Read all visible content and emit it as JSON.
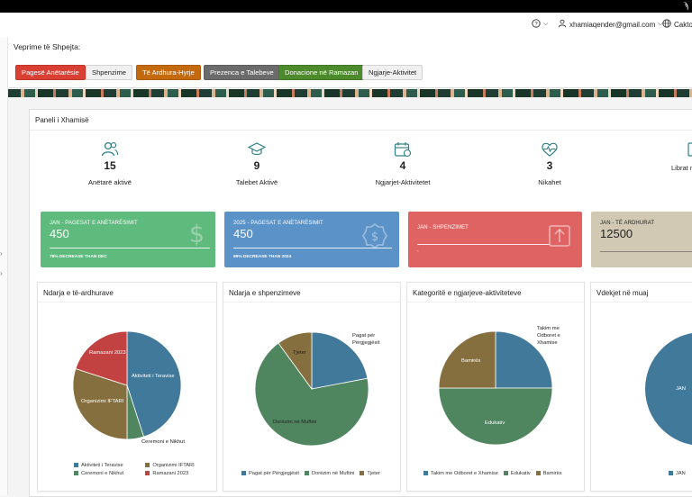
{
  "header": {
    "help_icon": "help-circle-icon",
    "user_email": "xhamiaqender@gmail.com",
    "language_label": "Cakto"
  },
  "quick_actions": {
    "title": "Veprime të Shpejta:",
    "buttons": [
      {
        "label": "Pagesë Anëtarësie",
        "color": "#d93f33"
      },
      {
        "label": "Shpenzime",
        "color": "#f0f0f0"
      },
      {
        "label": "Të Ardhura-Hyrje",
        "color": "#c3690e"
      },
      {
        "label": "Prezenca e Talebeve",
        "color": "#6b6b6b"
      },
      {
        "label": "Donacione në Ramazan",
        "color": "#4c8a2c"
      },
      {
        "label": "Ngjarje-Aktivitet",
        "color": "#f0f0f0"
      }
    ]
  },
  "panel": {
    "title": "Paneli i Xhamisë",
    "stats": [
      {
        "value": "15",
        "label": "Anëtarë aktivë",
        "icon": "users-icon"
      },
      {
        "value": "9",
        "label": "Talebet Aktivë",
        "icon": "graduation-cap-icon"
      },
      {
        "value": "4",
        "label": "Ngjarjet-Aktivitetet",
        "icon": "calendar-icon"
      },
      {
        "value": "3",
        "label": "Nikahet",
        "icon": "heart-pulse-icon"
      },
      {
        "value": "",
        "label": "Librat n",
        "icon": "book-icon"
      }
    ],
    "cards": [
      {
        "title": "JAN - PAGESAT E ANËTARËSIMIT",
        "value": "450",
        "footer": "78% DECREASE THAN DEC",
        "color": "#5fba7d",
        "icon": "dollar-icon"
      },
      {
        "title": "2025 - PAGESAT E ANËTARËSIMIT",
        "value": "450",
        "footer": "99% DECREASE THAN 2024",
        "color": "#5b93c9",
        "icon": "dollar-badge-icon"
      },
      {
        "title": "JAN - SHPENZIMET",
        "value": "",
        "footer": "-",
        "color": "#e06363",
        "icon": "upload-icon"
      },
      {
        "title": "JAN - TË ARDHURAT",
        "value": "12500",
        "footer": "",
        "color": "#d1c9b4",
        "icon": ""
      }
    ]
  },
  "charts": [
    {
      "title": "Ndarja e të-ardhurave",
      "labels": [
        "Aktiviteti i Teravise",
        "Ceremoni e Nikhut",
        "Organizimi IFTARI",
        "Ramazani 2023"
      ],
      "legend": [
        "Aktiviteti i Teravise",
        "Organizimi IFTARI",
        "Ceremoni e Nikhut",
        "Ramazani 2023"
      ]
    },
    {
      "title": "Ndarja e shpenzimeve",
      "labels": [
        "Pagat për Përgjegjësit",
        "Dorëzim në Muftini",
        "Tjeter"
      ],
      "legend": [
        "Pagat për Përgjegjësit",
        "Dorëzim në Muftini",
        "Tjeter"
      ]
    },
    {
      "title": "Kategoritë e ngjarjeve-aktiviteteve",
      "labels": [
        "Takim me Odboret e Xhamise",
        "Edukativ",
        "Bamirës"
      ],
      "legend": [
        "Takim me Odboret e Xhamise",
        "Edukativ",
        "Bamirës"
      ]
    },
    {
      "title": "Vdekjet në muaj",
      "labels": [
        "JAN"
      ],
      "legend": [
        "JAN"
      ]
    }
  ],
  "chart_data": [
    {
      "type": "pie",
      "title": "Ndarja e të-ardhurave",
      "categories": [
        "Aktiviteti i Teravise",
        "Ceremoni e Nikhut",
        "Organizimi IFTARI",
        "Ramazani 2023"
      ],
      "values": [
        45,
        5,
        30,
        20
      ],
      "colors": [
        "#41799a",
        "#4f8660",
        "#866f3e",
        "#c24141"
      ]
    },
    {
      "type": "pie",
      "title": "Ndarja e shpenzimeve",
      "categories": [
        "Pagat për Përgjegjësit",
        "Dorëzim në Muftini",
        "Tjeter"
      ],
      "values": [
        22,
        68,
        10
      ],
      "colors": [
        "#41799a",
        "#4f8660",
        "#866f3e"
      ]
    },
    {
      "type": "pie",
      "title": "Kategoritë e ngjarjeve-aktiviteteve",
      "categories": [
        "Takim me Odboret e Xhamise",
        "Edukativ",
        "Bamirës"
      ],
      "values": [
        25,
        50,
        25
      ],
      "colors": [
        "#41799a",
        "#4f8660",
        "#866f3e"
      ]
    },
    {
      "type": "pie",
      "title": "Vdekjet në muaj",
      "categories": [
        "JAN"
      ],
      "values": [
        1
      ],
      "colors": [
        "#41799a"
      ]
    }
  ]
}
